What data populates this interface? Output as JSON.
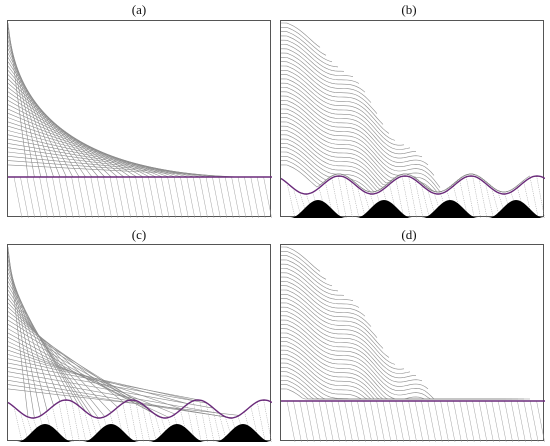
{
  "panels": [
    {
      "label": "(a)",
      "curved_lines": false,
      "bumps": false
    },
    {
      "label": "(b)",
      "curved_lines": true,
      "bumps": true
    },
    {
      "label": "(c)",
      "curved_lines": false,
      "bumps": true
    },
    {
      "label": "(d)",
      "curved_lines": true,
      "bumps": false
    }
  ],
  "colors": {
    "lines": "#8c8c8c",
    "rays": "#9a9a9a",
    "interface": "#6a2a7a",
    "bumps": "#000000",
    "frame": "#555555"
  }
}
